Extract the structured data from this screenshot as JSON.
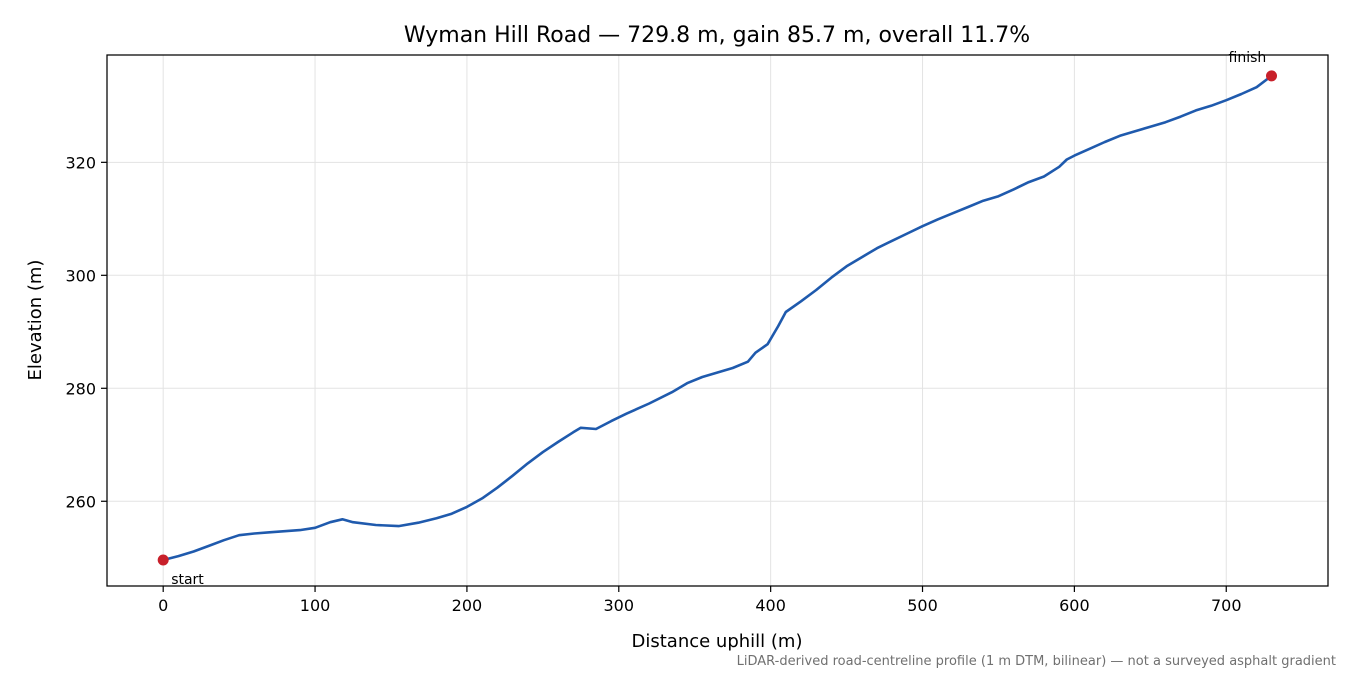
{
  "chart_data": {
    "type": "line",
    "title": "Wyman Hill Road — 729.8 m, gain 85.7 m, overall 11.7%",
    "xlabel": "Distance uphill (m)",
    "ylabel": "Elevation (m)",
    "xlim": [
      -37,
      767
    ],
    "ylim": [
      245,
      339
    ],
    "xticks": [
      0,
      100,
      200,
      300,
      400,
      500,
      600,
      700
    ],
    "yticks": [
      260,
      280,
      300,
      320
    ],
    "grid": true,
    "footnote": "LiDAR-derived road-centreline profile (1 m DTM, bilinear) — not a surveyed asphalt gradient",
    "series": [
      {
        "color": "#1f5aad",
        "x": [
          0,
          10,
          20,
          30,
          40,
          50,
          60,
          70,
          80,
          90,
          100,
          110,
          118,
          125,
          140,
          155,
          168,
          180,
          190,
          200,
          210,
          220,
          230,
          240,
          250,
          260,
          270,
          275,
          285,
          295,
          305,
          320,
          335,
          345,
          355,
          365,
          375,
          385,
          390,
          398,
          405,
          410,
          420,
          430,
          440,
          450,
          460,
          470,
          480,
          490,
          500,
          510,
          520,
          530,
          540,
          550,
          560,
          570,
          580,
          590,
          595,
          600,
          610,
          620,
          630,
          640,
          650,
          660,
          670,
          680,
          690,
          700,
          710,
          720,
          729.8
        ],
        "y": [
          249.6,
          250.3,
          251.1,
          252.1,
          253.1,
          254.0,
          254.3,
          254.5,
          254.7,
          254.9,
          255.3,
          256.3,
          256.8,
          256.3,
          255.8,
          255.6,
          256.2,
          257.0,
          257.8,
          259.0,
          260.5,
          262.4,
          264.5,
          266.7,
          268.7,
          270.5,
          272.2,
          273.0,
          272.8,
          274.2,
          275.5,
          277.3,
          279.3,
          280.9,
          282.0,
          282.8,
          283.6,
          284.7,
          286.3,
          287.8,
          291.0,
          293.5,
          295.4,
          297.4,
          299.6,
          301.6,
          303.2,
          304.8,
          306.1,
          307.4,
          308.7,
          309.9,
          311.0,
          312.1,
          313.2,
          314.0,
          315.2,
          316.5,
          317.5,
          319.2,
          320.5,
          321.2,
          322.4,
          323.6,
          324.7,
          325.5,
          326.3,
          327.1,
          328.1,
          329.2,
          330.0,
          331.0,
          332.1,
          333.3,
          335.3
        ]
      }
    ],
    "annotations": [
      {
        "label": "start",
        "x": 0,
        "y": 249.6,
        "color": "#c8202a"
      },
      {
        "label": "finish",
        "x": 729.8,
        "y": 335.3,
        "color": "#c8202a"
      }
    ]
  }
}
